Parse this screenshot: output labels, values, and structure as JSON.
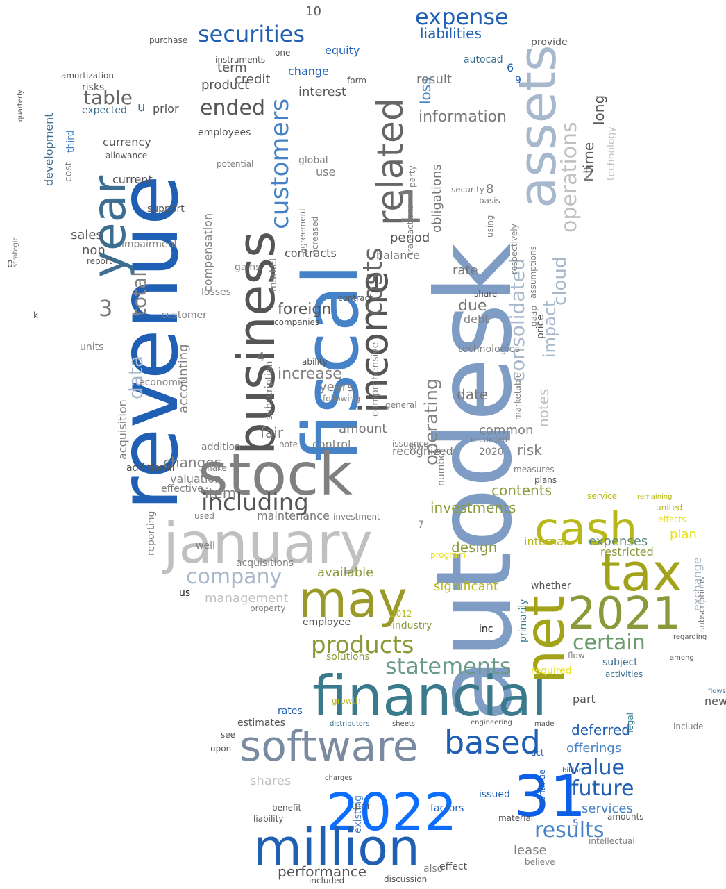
{
  "colors": {
    "background": "#ffffff",
    "royal_blue": "#1f5fb4",
    "bright_blue": "#0d6efd",
    "steel_blue": "#7f9cc4",
    "light_steel": "#a8b8cc",
    "gray": "#808080",
    "light_gray": "#c0c0c0",
    "dark_gray": "#555555",
    "olive": "#a3a31a",
    "yellow": "#e8e01a",
    "teal": "#3b7a8c",
    "mid_blue": "#4682c8"
  },
  "words": [
    {
      "text": "autodesk",
      "color": "#7f9cc4"
    },
    {
      "text": "revenue",
      "color": "#1f5fb4"
    },
    {
      "text": "fiscal",
      "color": "#4682c8"
    },
    {
      "text": "business",
      "color": "#555555"
    },
    {
      "text": "january",
      "color": "#c0c0c0"
    },
    {
      "text": "stock",
      "color": "#808080"
    },
    {
      "text": "financial",
      "color": "#3b7a8c"
    },
    {
      "text": "year",
      "color": "#3c6e91"
    },
    {
      "text": "assets",
      "color": "#a8b8cc"
    },
    {
      "text": "net",
      "color": "#a3a31a"
    },
    {
      "text": "tax",
      "color": "#a3a31a"
    },
    {
      "text": "cash",
      "color": "#b8b81a"
    },
    {
      "text": "may",
      "color": "#9a9a2a"
    },
    {
      "text": "2021",
      "color": "#8a9a3a"
    },
    {
      "text": "2022",
      "color": "#0d6efd"
    },
    {
      "text": "31",
      "color": "#0d5fe8"
    },
    {
      "text": "million",
      "color": "#1f5fb4"
    },
    {
      "text": "software",
      "color": "#7a8aa0"
    },
    {
      "text": "based",
      "color": "#1f5fb4"
    },
    {
      "text": "income",
      "color": "#555555"
    },
    {
      "text": "related",
      "color": "#666666"
    },
    {
      "text": "1",
      "color": "#777777"
    },
    {
      "text": "securities",
      "color": "#1f5fb4"
    },
    {
      "text": "expense",
      "color": "#1f5fb4"
    },
    {
      "text": "customers",
      "color": "#4682c8"
    },
    {
      "text": "costs",
      "color": "#666666"
    },
    {
      "text": "operations",
      "color": "#c0c0c0"
    },
    {
      "text": "consolidated",
      "color": "#a8b8cc"
    },
    {
      "text": "including",
      "color": "#555555"
    },
    {
      "text": "company",
      "color": "#a8b8cc"
    },
    {
      "text": "products",
      "color": "#8a9a3a"
    },
    {
      "text": "statements",
      "color": "#6a9a8a"
    },
    {
      "text": "certain",
      "color": "#6a9a6a"
    },
    {
      "text": "value",
      "color": "#1f5fb4"
    },
    {
      "text": "future",
      "color": "#1f5fb4"
    },
    {
      "text": "results",
      "color": "#4682c8"
    },
    {
      "text": "ended",
      "color": "#555555"
    },
    {
      "text": "table",
      "color": "#666666"
    },
    {
      "text": "data",
      "color": "#a8b8cc"
    },
    {
      "text": "total",
      "color": "#808080"
    },
    {
      "text": "3",
      "color": "#777777"
    },
    {
      "text": "operating",
      "color": "#808080"
    },
    {
      "text": "impact",
      "color": "#a8b8cc"
    },
    {
      "text": "notes",
      "color": "#c0c0c0"
    },
    {
      "text": "cloud",
      "color": "#a8b8cc"
    },
    {
      "text": "information",
      "color": "#777777"
    },
    {
      "text": "liabilities",
      "color": "#1f5fb4"
    },
    {
      "text": "loss",
      "color": "#4682c8"
    },
    {
      "text": "result",
      "color": "#777777"
    },
    {
      "text": "obligations",
      "color": "#777777"
    },
    {
      "text": "2",
      "color": "#777777"
    },
    {
      "text": "time",
      "color": "#555555"
    },
    {
      "text": "long",
      "color": "#555555"
    },
    {
      "text": "technology",
      "color": "#c0c0c0"
    },
    {
      "text": "fair",
      "color": "#808080"
    },
    {
      "text": "foreign",
      "color": "#555555"
    },
    {
      "text": "increase",
      "color": "#808080"
    },
    {
      "text": "changes",
      "color": "#808080"
    },
    {
      "text": "valuation",
      "color": "#808080"
    },
    {
      "text": "item",
      "color": "#808080"
    },
    {
      "text": "maintenance",
      "color": "#777777"
    },
    {
      "text": "management",
      "color": "#c0c0c0"
    },
    {
      "text": "investments",
      "color": "#8a9a3a"
    },
    {
      "text": "contents",
      "color": "#8a9a3a"
    },
    {
      "text": "design",
      "color": "#8a9a3a"
    },
    {
      "text": "significant",
      "color": "#b8b81a"
    },
    {
      "text": "available",
      "color": "#8a9a3a"
    },
    {
      "text": "expenses",
      "color": "#5a8a7a"
    },
    {
      "text": "restricted",
      "color": "#8a9a3a"
    },
    {
      "text": "internal",
      "color": "#b8b81a"
    },
    {
      "text": "plan",
      "color": "#e8e01a"
    },
    {
      "text": "exchange",
      "color": "#a8b8cc"
    },
    {
      "text": "deferred",
      "color": "#1f5fb4"
    },
    {
      "text": "offerings",
      "color": "#4682c8"
    },
    {
      "text": "services",
      "color": "#4682c8"
    },
    {
      "text": "performance",
      "color": "#555555"
    },
    {
      "text": "shares",
      "color": "#c0c0c0"
    },
    {
      "text": "lease",
      "color": "#808080"
    },
    {
      "text": "contracts",
      "color": "#555555"
    },
    {
      "text": "period",
      "color": "#555555"
    },
    {
      "text": "balance",
      "color": "#777777"
    },
    {
      "text": "rate",
      "color": "#777777"
    },
    {
      "text": "due",
      "color": "#777777"
    },
    {
      "text": "debt",
      "color": "#808080"
    },
    {
      "text": "date",
      "color": "#777777"
    },
    {
      "text": "years",
      "color": "#808080"
    },
    {
      "text": "amount",
      "color": "#777777"
    },
    {
      "text": "control",
      "color": "#808080"
    },
    {
      "text": "recognized",
      "color": "#777777"
    },
    {
      "text": "common",
      "color": "#808080"
    },
    {
      "text": "risk",
      "color": "#808080"
    },
    {
      "text": "credit",
      "color": "#555555"
    },
    {
      "text": "term",
      "color": "#555555"
    },
    {
      "text": "product",
      "color": "#555555"
    },
    {
      "text": "interest",
      "color": "#555555"
    },
    {
      "text": "change",
      "color": "#1f5fb4"
    },
    {
      "text": "equity",
      "color": "#1f5fb4"
    },
    {
      "text": "employees",
      "color": "#555555"
    },
    {
      "text": "sales",
      "color": "#555555"
    },
    {
      "text": "non",
      "color": "#555555"
    },
    {
      "text": "current",
      "color": "#555555"
    },
    {
      "text": "currency",
      "color": "#555555"
    },
    {
      "text": "development",
      "color": "#3c6e91"
    },
    {
      "text": "acquisition",
      "color": "#808080"
    },
    {
      "text": "cost",
      "color": "#808080"
    },
    {
      "text": "third",
      "color": "#4682c8"
    },
    {
      "text": "expected",
      "color": "#3c6e91"
    },
    {
      "text": "u",
      "color": "#3c6e91"
    },
    {
      "text": "prior",
      "color": "#555555"
    },
    {
      "text": "support",
      "color": "#555555"
    },
    {
      "text": "impairment",
      "color": "#808080"
    },
    {
      "text": "economic",
      "color": "#808080"
    },
    {
      "text": "additional",
      "color": "#555555"
    },
    {
      "text": "accounting",
      "color": "#808080"
    },
    {
      "text": "compensation",
      "color": "#808080"
    },
    {
      "text": "customer",
      "color": "#808080"
    },
    {
      "text": "market",
      "color": "#808080"
    },
    {
      "text": "losses",
      "color": "#808080"
    },
    {
      "text": "subscription",
      "color": "#777777"
    },
    {
      "text": "addition",
      "color": "#808080"
    },
    {
      "text": "note",
      "color": "#808080"
    },
    {
      "text": "2020",
      "color": "#808080"
    },
    {
      "text": "global",
      "color": "#808080"
    },
    {
      "text": "use",
      "color": "#808080"
    },
    {
      "text": "security",
      "color": "#808080"
    },
    {
      "text": "8",
      "color": "#808080"
    },
    {
      "text": "10",
      "color": "#555555"
    },
    {
      "text": "4",
      "color": "#808080"
    },
    {
      "text": "5",
      "color": "#1f5fb4"
    },
    {
      "text": "6",
      "color": "#1f5fb4"
    },
    {
      "text": "9",
      "color": "#1f5fb4"
    },
    {
      "text": "7",
      "color": "#808080"
    },
    {
      "text": "employee",
      "color": "#555555"
    },
    {
      "text": "industry",
      "color": "#8a9a3a"
    },
    {
      "text": "solutions",
      "color": "#8a9a3a"
    },
    {
      "text": "2012",
      "color": "#b8b81a"
    },
    {
      "text": "program",
      "color": "#e8e01a"
    },
    {
      "text": "required",
      "color": "#e8e01a"
    },
    {
      "text": "growth",
      "color": "#b8b81a"
    },
    {
      "text": "primarily",
      "color": "#3b7a8c"
    },
    {
      "text": "whether",
      "color": "#555555"
    },
    {
      "text": "part",
      "color": "#555555"
    },
    {
      "text": "flow",
      "color": "#808080"
    },
    {
      "text": "subject",
      "color": "#3c6e91"
    },
    {
      "text": "activities",
      "color": "#3c6e91"
    },
    {
      "text": "new",
      "color": "#555555"
    },
    {
      "text": "include",
      "color": "#808080"
    },
    {
      "text": "inc",
      "color": "#222222"
    },
    {
      "text": "rates",
      "color": "#1f5fb4"
    },
    {
      "text": "estimates",
      "color": "#555555"
    },
    {
      "text": "upon",
      "color": "#555555"
    },
    {
      "text": "see",
      "color": "#555555"
    },
    {
      "text": "charges",
      "color": "#555555"
    },
    {
      "text": "benefit",
      "color": "#555555"
    },
    {
      "text": "liability",
      "color": "#555555"
    },
    {
      "text": "factors",
      "color": "#1f5fb4"
    },
    {
      "text": "material",
      "color": "#555555"
    },
    {
      "text": "issued",
      "color": "#1f5fb4"
    },
    {
      "text": "continue",
      "color": "#1f5fb4"
    },
    {
      "text": "amounts",
      "color": "#555555"
    },
    {
      "text": "intellectual",
      "color": "#808080"
    },
    {
      "text": "believe",
      "color": "#808080"
    },
    {
      "text": "also",
      "color": "#808080"
    },
    {
      "text": "effect",
      "color": "#555555"
    },
    {
      "text": "included",
      "color": "#555555"
    },
    {
      "text": "discussion",
      "color": "#555555"
    },
    {
      "text": "existing",
      "color": "#4682c8"
    },
    {
      "text": "per",
      "color": "#555555"
    },
    {
      "text": "acquisitions",
      "color": "#808080"
    },
    {
      "text": "well",
      "color": "#808080"
    },
    {
      "text": "us",
      "color": "#222222"
    },
    {
      "text": "used",
      "color": "#808080"
    },
    {
      "text": "reporting",
      "color": "#808080"
    },
    {
      "text": "effective",
      "color": "#808080"
    },
    {
      "text": "make",
      "color": "#808080"
    },
    {
      "text": "units",
      "color": "#808080"
    },
    {
      "text": "gains",
      "color": "#808080"
    },
    {
      "text": "risks",
      "color": "#555555"
    },
    {
      "text": "amortization",
      "color": "#555555"
    },
    {
      "text": "purchase",
      "color": "#555555"
    },
    {
      "text": "instruments",
      "color": "#555555"
    },
    {
      "text": "report",
      "color": "#555555"
    },
    {
      "text": "price",
      "color": "#555555"
    },
    {
      "text": "technologies",
      "color": "#808080"
    },
    {
      "text": "number",
      "color": "#808080"
    },
    {
      "text": "general",
      "color": "#808080"
    },
    {
      "text": "following",
      "color": "#808080"
    },
    {
      "text": "issuance",
      "color": "#808080"
    },
    {
      "text": "comprehensive",
      "color": "#808080"
    },
    {
      "text": "investment",
      "color": "#808080"
    },
    {
      "text": "transactions",
      "color": "#808080"
    },
    {
      "text": "party",
      "color": "#808080"
    },
    {
      "text": "provide",
      "color": "#555555"
    },
    {
      "text": "autocad",
      "color": "#3c6e91"
    },
    {
      "text": "respectively",
      "color": "#808080"
    },
    {
      "text": "gaap",
      "color": "#808080"
    },
    {
      "text": "assumptions",
      "color": "#808080"
    },
    {
      "text": "property",
      "color": "#808080"
    },
    {
      "text": "marketable",
      "color": "#808080"
    },
    {
      "text": "measures",
      "color": "#808080"
    },
    {
      "text": "plans",
      "color": "#555555"
    },
    {
      "text": "recorded",
      "color": "#808080"
    },
    {
      "text": "laws",
      "color": "#808080"
    },
    {
      "text": "companies",
      "color": "#555555"
    },
    {
      "text": "ability",
      "color": "#555555"
    },
    {
      "text": "agreement",
      "color": "#808080"
    },
    {
      "text": "increased",
      "color": "#808080"
    },
    {
      "text": "potential",
      "color": "#808080"
    },
    {
      "text": "allowance",
      "color": "#555555"
    },
    {
      "text": "one",
      "color": "#555555"
    },
    {
      "text": "form",
      "color": "#555555"
    },
    {
      "text": "basis",
      "color": "#808080"
    },
    {
      "text": "using",
      "color": "#808080"
    },
    {
      "text": "contract",
      "color": "#555555"
    },
    {
      "text": "share",
      "color": "#555555"
    },
    {
      "text": "united",
      "color": "#b8b81a"
    },
    {
      "text": "effects",
      "color": "#e8e01a"
    },
    {
      "text": "service",
      "color": "#b8b81a"
    },
    {
      "text": "remaining",
      "color": "#b8b81a"
    },
    {
      "text": "subscriptions",
      "color": "#808080"
    },
    {
      "text": "regarding",
      "color": "#555555"
    },
    {
      "text": "among",
      "color": "#555555"
    },
    {
      "text": "legal",
      "color": "#3b7a8c"
    },
    {
      "text": "flows",
      "color": "#3c6e91"
    },
    {
      "text": "engineering",
      "color": "#555555"
    },
    {
      "text": "distributors",
      "color": "#3c6e91"
    },
    {
      "text": "sheets",
      "color": "#555555"
    },
    {
      "text": "made",
      "color": "#555555"
    },
    {
      "text": "act",
      "color": "#1f5fb4"
    },
    {
      "text": "billion",
      "color": "#1f5fb4"
    },
    {
      "text": "quarterly",
      "color": "#555555"
    },
    {
      "text": "strategic",
      "color": "#808080"
    },
    {
      "text": "0",
      "color": "#555555"
    },
    {
      "text": "k",
      "color": "#555555"
    }
  ]
}
